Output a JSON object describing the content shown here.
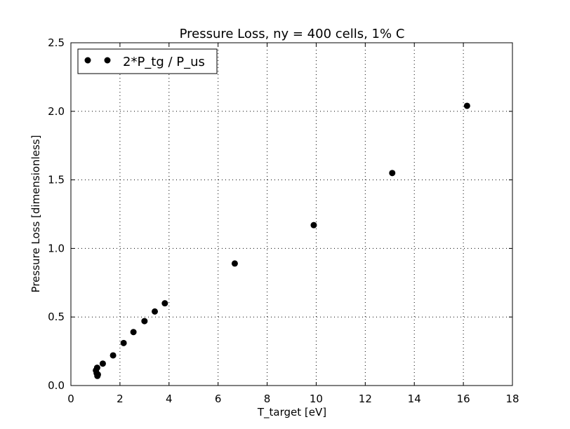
{
  "chart_data": {
    "type": "scatter",
    "title": "Pressure Loss, ny = 400 cells, 1% C",
    "xlabel": "T_target [eV]",
    "ylabel": "Pressure Loss [dimensionless]",
    "xlim": [
      0,
      18
    ],
    "ylim": [
      0,
      2.5
    ],
    "xticks": [
      0,
      2,
      4,
      6,
      8,
      10,
      12,
      14,
      16,
      18
    ],
    "yticks": [
      0.0,
      0.5,
      1.0,
      1.5,
      2.0,
      2.5
    ],
    "xtick_labels": [
      "0",
      "2",
      "4",
      "6",
      "8",
      "10",
      "12",
      "14",
      "16",
      "18"
    ],
    "ytick_labels": [
      "0.0",
      "0.5",
      "1.0",
      "1.5",
      "2.0",
      "2.5"
    ],
    "grid": true,
    "legend_position": "top-left",
    "series": [
      {
        "name": "2*P_tg / P_us",
        "color": "#000000",
        "marker": "circle",
        "points": [
          [
            1.05,
            0.09
          ],
          [
            1.08,
            0.07
          ],
          [
            1.02,
            0.11
          ],
          [
            1.1,
            0.08
          ],
          [
            1.07,
            0.13
          ],
          [
            1.3,
            0.16
          ],
          [
            1.72,
            0.22
          ],
          [
            2.15,
            0.31
          ],
          [
            2.55,
            0.39
          ],
          [
            3.0,
            0.47
          ],
          [
            3.42,
            0.54
          ],
          [
            3.83,
            0.6
          ],
          [
            6.68,
            0.89
          ],
          [
            9.9,
            1.17
          ],
          [
            13.1,
            1.55
          ],
          [
            16.15,
            2.04
          ]
        ]
      }
    ]
  }
}
